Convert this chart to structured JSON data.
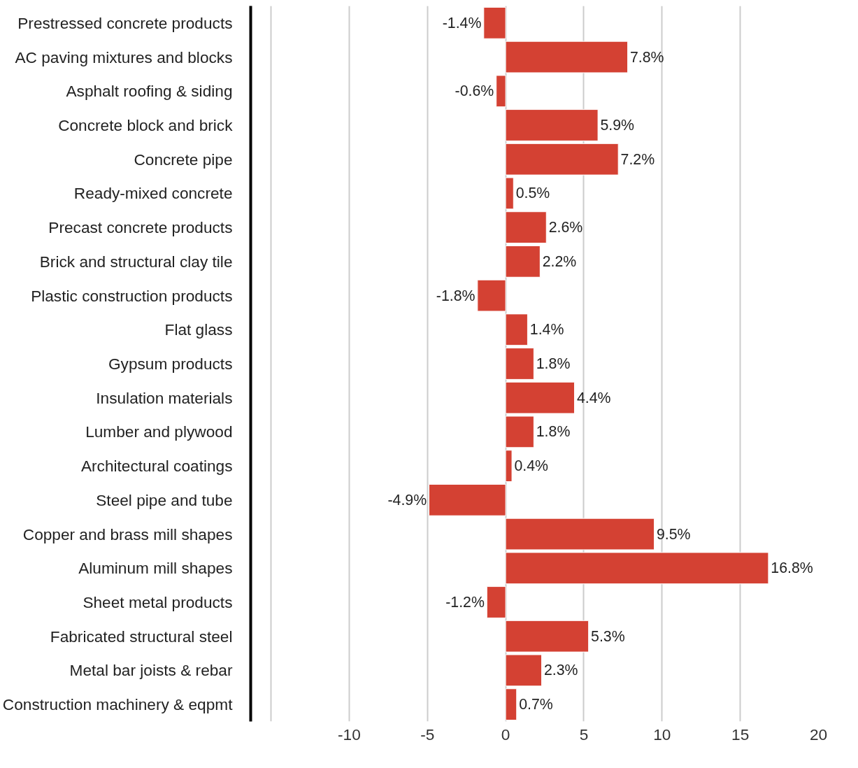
{
  "chart_data": {
    "type": "bar",
    "orientation": "horizontal",
    "categories": [
      "Prestressed concrete products",
      "AC paving mixtures and blocks",
      "Asphalt roofing & siding",
      "Concrete block and brick",
      "Concrete pipe",
      "Ready-mixed concrete",
      "Precast concrete products",
      "Brick and structural clay tile",
      "Plastic construction products",
      "Flat glass",
      "Gypsum products",
      "Insulation materials",
      "Lumber and plywood",
      "Architectural coatings",
      "Steel pipe and tube",
      "Copper and brass mill shapes",
      "Aluminum mill shapes",
      "Sheet metal products",
      "Fabricated structural steel",
      "Metal bar joists & rebar",
      "Construction machinery & eqpmt"
    ],
    "values": [
      -1.4,
      7.8,
      -0.6,
      5.9,
      7.2,
      0.5,
      2.6,
      2.2,
      -1.8,
      1.4,
      1.8,
      4.4,
      1.8,
      0.4,
      -4.9,
      9.5,
      16.8,
      -1.2,
      5.3,
      2.3,
      0.7
    ],
    "value_labels": [
      "-1.4%",
      "7.8%",
      "-0.6%",
      "5.9%",
      "7.2%",
      "0.5%",
      "2.6%",
      "2.2%",
      "-1.8%",
      "1.4%",
      "1.8%",
      "4.4%",
      "1.8%",
      "0.4%",
      "-4.9%",
      "9.5%",
      "16.8%",
      "-1.2%",
      "5.3%",
      "2.3%",
      "0.7%"
    ],
    "color": "#d44133",
    "xlim": [
      -16.3,
      20
    ],
    "xticks": [
      {
        "value": -15,
        "label": null
      },
      -10,
      -5,
      0,
      5,
      10,
      15,
      20
    ],
    "grid": "x"
  }
}
